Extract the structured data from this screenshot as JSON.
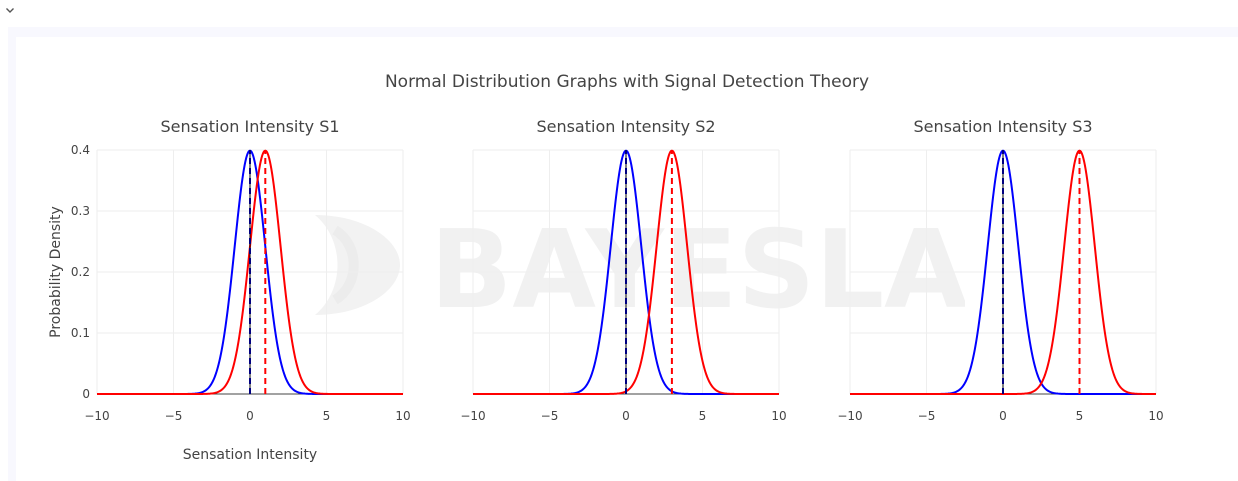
{
  "figure": {
    "title": "Normal Distribution Graphs with Signal Detection Theory",
    "ylabel": "Probability Density",
    "xlabel": "Sensation Intensity",
    "colors": {
      "noise": "#0000ff",
      "signal": "#ff0000",
      "criterion": "#000000",
      "grid": "#eeeeee"
    }
  },
  "watermark": {
    "text": "BAYESLAB"
  },
  "chart_data": [
    {
      "type": "line",
      "title": "Sensation Intensity S1",
      "xlim": [
        -10,
        10
      ],
      "ylim": [
        0,
        0.4
      ],
      "xticks": [
        -10,
        -5,
        0,
        5,
        10
      ],
      "xtick_labels": [
        "−10",
        "−5",
        "0",
        "5",
        "10"
      ],
      "yticks": [
        0,
        0.1,
        0.2,
        0.3,
        0.4
      ],
      "ytick_labels": [
        "0",
        "0.1",
        "0.2",
        "0.3",
        "0.4"
      ],
      "grid": true,
      "series": [
        {
          "distribution": "normal",
          "mean": 0,
          "sd": 1,
          "color": "#0000ff"
        },
        {
          "distribution": "normal",
          "mean": 1,
          "sd": 1,
          "color": "#ff0000"
        }
      ],
      "vlines": [
        {
          "x": 0,
          "y": 0.3989,
          "color": "#0000ff",
          "dash": "dash"
        },
        {
          "x": 1,
          "y": 0.3989,
          "color": "#ff0000",
          "dash": "dash"
        },
        {
          "x": 0,
          "y": 0.4,
          "color": "#000000",
          "dash": "solid"
        }
      ]
    },
    {
      "type": "line",
      "title": "Sensation Intensity S2",
      "xlim": [
        -10,
        10
      ],
      "ylim": [
        0,
        0.4
      ],
      "xticks": [
        -10,
        -5,
        0,
        5,
        10
      ],
      "xtick_labels": [
        "−10",
        "−5",
        "0",
        "5",
        "10"
      ],
      "yticks": [
        0,
        0.1,
        0.2,
        0.3,
        0.4
      ],
      "ytick_labels": [],
      "grid": true,
      "series": [
        {
          "distribution": "normal",
          "mean": 0,
          "sd": 1,
          "color": "#0000ff"
        },
        {
          "distribution": "normal",
          "mean": 3,
          "sd": 1,
          "color": "#ff0000"
        }
      ],
      "vlines": [
        {
          "x": 0,
          "y": 0.3989,
          "color": "#0000ff",
          "dash": "dash"
        },
        {
          "x": 3,
          "y": 0.3989,
          "color": "#ff0000",
          "dash": "dash"
        },
        {
          "x": 0,
          "y": 0.4,
          "color": "#000000",
          "dash": "solid"
        }
      ]
    },
    {
      "type": "line",
      "title": "Sensation Intensity S3",
      "xlim": [
        -10,
        10
      ],
      "ylim": [
        0,
        0.4
      ],
      "xticks": [
        -10,
        -5,
        0,
        5,
        10
      ],
      "xtick_labels": [
        "−10",
        "−5",
        "0",
        "5",
        "10"
      ],
      "yticks": [
        0,
        0.1,
        0.2,
        0.3,
        0.4
      ],
      "ytick_labels": [],
      "grid": true,
      "series": [
        {
          "distribution": "normal",
          "mean": 0,
          "sd": 1,
          "color": "#0000ff"
        },
        {
          "distribution": "normal",
          "mean": 5,
          "sd": 1,
          "color": "#ff0000"
        }
      ],
      "vlines": [
        {
          "x": 0,
          "y": 0.3989,
          "color": "#0000ff",
          "dash": "dash"
        },
        {
          "x": 5,
          "y": 0.3989,
          "color": "#ff0000",
          "dash": "dash"
        },
        {
          "x": 0,
          "y": 0.4,
          "color": "#000000",
          "dash": "solid"
        }
      ]
    }
  ]
}
